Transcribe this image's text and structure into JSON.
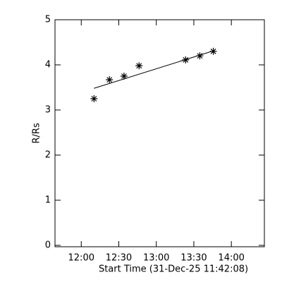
{
  "chart_data": {
    "type": "scatter",
    "x_label": "Start Time (31-Dec-25 11:42:08)",
    "y_label": "R/Rs",
    "x": [
      12.17,
      12.375,
      12.57,
      12.77,
      13.39,
      13.58,
      13.76
    ],
    "values": [
      3.25,
      3.67,
      3.75,
      3.98,
      4.11,
      4.2,
      4.3
    ],
    "fit": {
      "x": [
        12.17,
        13.76
      ],
      "values": [
        3.48,
        4.31
      ]
    },
    "color": "#000000",
    "xlim": [
      11.65,
      14.44
    ],
    "ylim": [
      0,
      5
    ],
    "xticks": [
      {
        "value": 12,
        "label": "12:00"
      },
      {
        "value": 12.5,
        "label": "12:30"
      },
      {
        "value": 13,
        "label": "13:00"
      },
      {
        "value": 13.5,
        "label": "13:30"
      },
      {
        "value": 14,
        "label": "14:00"
      }
    ],
    "yticks": [
      0,
      1,
      2,
      3,
      4,
      5
    ]
  }
}
